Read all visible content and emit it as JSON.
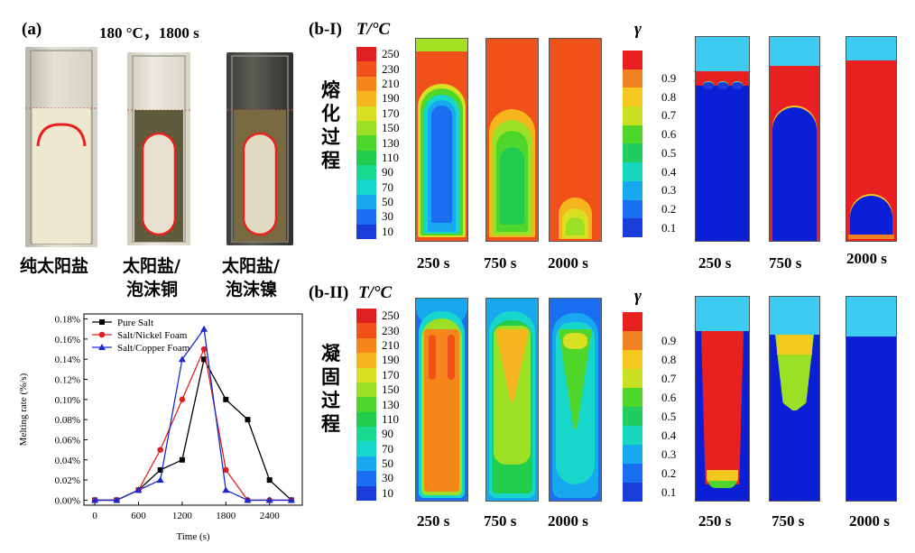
{
  "panel_a": {
    "label": "(a)",
    "condition": "180 °C，1800 s",
    "samples": [
      "纯太阳盐",
      "太阳盐/\n泡沫铜",
      "太阳盐/\n泡沫镍"
    ],
    "sample_line1": [
      "纯太阳盐",
      "太阳盐/",
      "太阳盐/"
    ],
    "sample_line2": [
      "",
      "泡沫铜",
      "泡沫镍"
    ]
  },
  "panel_b1": {
    "label": "(b-I)",
    "process": [
      "熔",
      "化",
      "过",
      "程"
    ],
    "times": [
      "250 s",
      "750 s",
      "2000 s"
    ]
  },
  "panel_b2": {
    "label": "(b-II)",
    "process": [
      "凝",
      "固",
      "过",
      "程"
    ],
    "times": [
      "250 s",
      "750 s",
      "2000 s"
    ]
  },
  "temp_bar": {
    "title": "T/°C",
    "ticks": [
      "250",
      "230",
      "210",
      "190",
      "170",
      "150",
      "130",
      "110",
      "90",
      "70",
      "50",
      "30",
      "10"
    ],
    "colors": [
      "#e02020",
      "#f0501a",
      "#f5861a",
      "#f5b51f",
      "#d9e021",
      "#9be025",
      "#4fd62b",
      "#22cc4c",
      "#1ad88f",
      "#17d6cc",
      "#18a8f0",
      "#1a6ff0",
      "#1a3cd8"
    ]
  },
  "gamma_bar": {
    "title": "γ",
    "ticks": [
      "0.9",
      "0.8",
      "0.7",
      "0.6",
      "0.5",
      "0.4",
      "0.3",
      "0.2",
      "0.1"
    ],
    "colors": [
      "#e82020",
      "#f08020",
      "#f5c81f",
      "#c8e021",
      "#50d62b",
      "#22cc60",
      "#17d6c0",
      "#18a8f0",
      "#1a6ff0",
      "#1a3cd8"
    ]
  },
  "chart_data": {
    "type": "line",
    "xlabel": "Time (s)",
    "ylabel": "Melting rate (%/s)",
    "x_ticks": [
      "0",
      "600",
      "1200",
      "1800",
      "2400"
    ],
    "y_ticks": [
      "0.00%",
      "0.02%",
      "0.04%",
      "0.06%",
      "0.08%",
      "0.10%",
      "0.12%",
      "0.14%",
      "0.16%",
      "0.18%"
    ],
    "xlim": [
      -150,
      2850
    ],
    "ylim": [
      -0.005,
      0.185
    ],
    "series": [
      {
        "name": "Pure Salt",
        "color": "#000000",
        "marker": "square",
        "x": [
          0,
          300,
          600,
          900,
          1200,
          1500,
          1800,
          2100,
          2400,
          2700
        ],
        "y": [
          0,
          0,
          0.01,
          0.03,
          0.04,
          0.14,
          0.1,
          0.08,
          0.02,
          0
        ]
      },
      {
        "name": "Salt/Nickel Foam",
        "color": "#e02020",
        "marker": "circle",
        "x": [
          0,
          300,
          600,
          900,
          1200,
          1500,
          1800,
          2100,
          2400,
          2700
        ],
        "y": [
          0,
          0,
          0.01,
          0.05,
          0.1,
          0.15,
          0.03,
          0,
          0,
          0
        ]
      },
      {
        "name": "Salt/Copper Foam",
        "color": "#1a2ad0",
        "marker": "triangle",
        "x": [
          0,
          300,
          600,
          900,
          1200,
          1500,
          1800,
          2100,
          2400,
          2700
        ],
        "y": [
          0,
          0,
          0.01,
          0.02,
          0.14,
          0.17,
          0.01,
          0,
          0,
          0
        ]
      }
    ]
  }
}
